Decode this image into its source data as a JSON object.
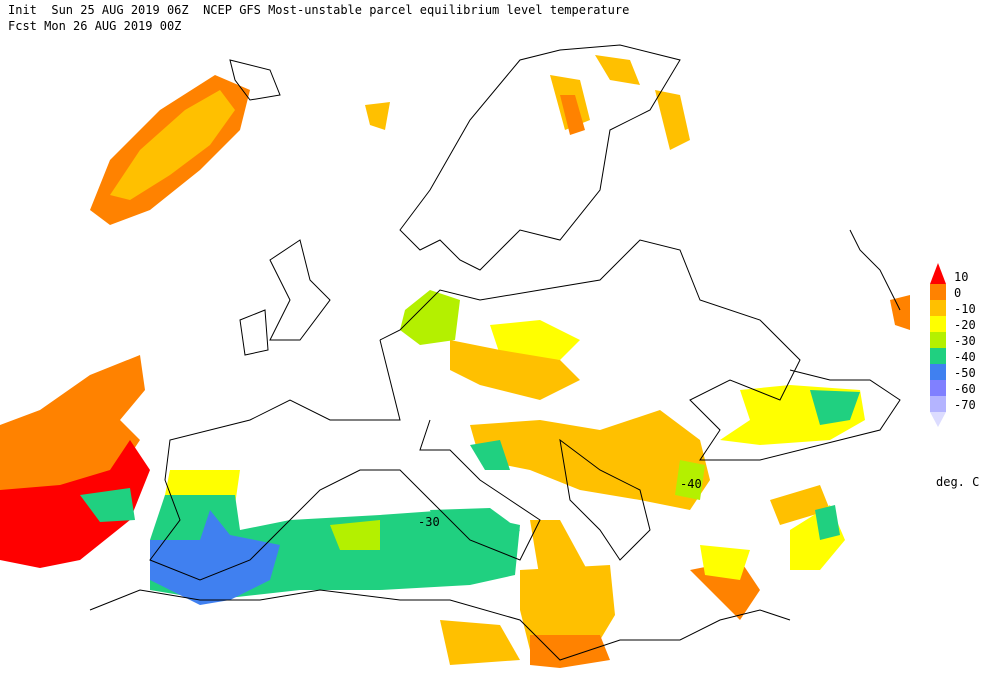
{
  "header": {
    "line1": "Init  Sun 25 AUG 2019 06Z  NCEP GFS Most-unstable parcel equilibrium level temperature",
    "line2": "Fcst Mon 26 AUG 2019 00Z"
  },
  "legend": {
    "labels": [
      10,
      0,
      -10,
      -20,
      -30,
      -40,
      -50,
      -60,
      -70
    ],
    "colors": [
      "#ff0000",
      "#ff8200",
      "#ffc000",
      "#ffff00",
      "#b4f000",
      "#20d080",
      "#4080f0",
      "#8080ff",
      "#b4b4ff",
      "#dcdcff"
    ],
    "units": "deg. C"
  },
  "annotations": [
    "-30",
    "-40"
  ]
}
